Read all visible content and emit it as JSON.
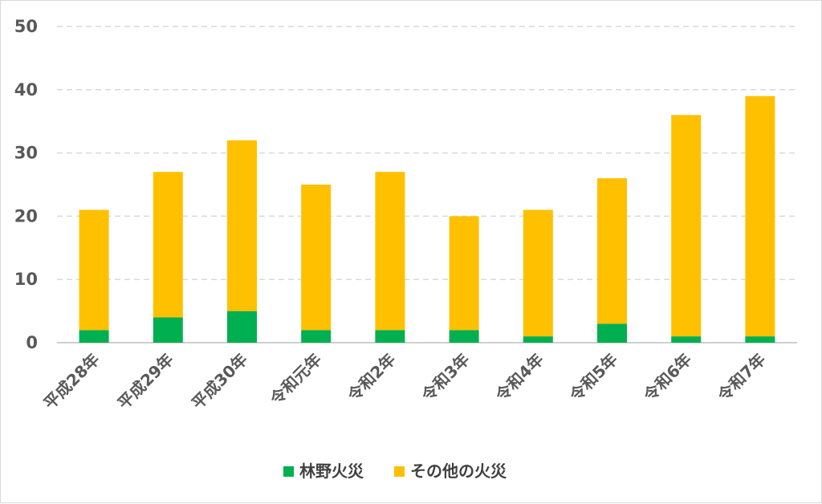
{
  "chart_data": {
    "type": "bar",
    "stacked": true,
    "categories": [
      "平成28年",
      "平成29年",
      "平成30年",
      "令和元年",
      "令和2年",
      "令和3年",
      "令和4年",
      "令和5年",
      "令和6年",
      "令和7年"
    ],
    "series": [
      {
        "name": "林野火災",
        "color": "#00b050",
        "values": [
          2,
          4,
          5,
          2,
          2,
          2,
          1,
          3,
          1,
          1
        ]
      },
      {
        "name": "その他の火災",
        "color": "#ffc000",
        "values": [
          19,
          23,
          27,
          23,
          25,
          18,
          20,
          23,
          35,
          38
        ]
      }
    ],
    "ylim": [
      0,
      50
    ],
    "yticks": [
      0,
      10,
      20,
      30,
      40,
      50
    ],
    "grid": true,
    "legend_position": "bottom"
  }
}
